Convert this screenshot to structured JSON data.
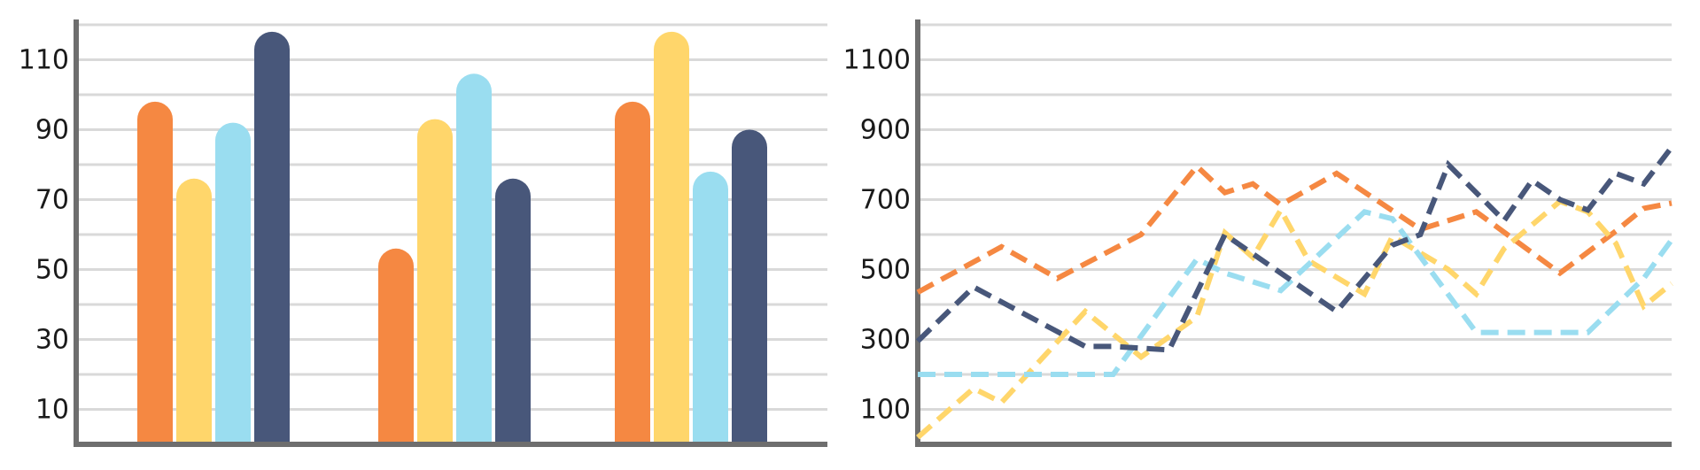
{
  "chart_data": [
    {
      "type": "bar",
      "categories": [
        "",
        "",
        ""
      ],
      "ylim": [
        0,
        120
      ],
      "yticks": [
        10,
        30,
        50,
        70,
        90,
        110
      ],
      "grid": true,
      "colors": [
        "#F58842",
        "#FFD66B",
        "#9ADDF0",
        "#48577A"
      ],
      "series": [
        {
          "color": "#F58842",
          "values": [
            98,
            56,
            98
          ]
        },
        {
          "color": "#FFD66B",
          "values": [
            76,
            93,
            118
          ]
        },
        {
          "color": "#9ADDF0",
          "values": [
            92,
            106,
            78
          ]
        },
        {
          "color": "#48577A",
          "values": [
            118,
            76,
            90
          ]
        }
      ]
    },
    {
      "type": "line",
      "ylim": [
        0,
        1200
      ],
      "xlim": [
        0,
        27
      ],
      "yticks": [
        100,
        300,
        500,
        700,
        900,
        1100
      ],
      "grid": true,
      "line_style": "dashed",
      "colors": [
        "#F58842",
        "#FFD66B",
        "#9ADDF0",
        "#48577A"
      ],
      "series": [
        {
          "color": "#F58842",
          "x": [
            0,
            3,
            5,
            8,
            10,
            11,
            12,
            13,
            15,
            18,
            20,
            23,
            25,
            26,
            27
          ],
          "y": [
            435,
            565,
            475,
            600,
            795,
            720,
            745,
            685,
            775,
            615,
            665,
            490,
            610,
            675,
            690
          ]
        },
        {
          "color": "#FFD66B",
          "x": [
            0,
            2,
            3,
            6,
            8,
            10,
            11,
            12,
            13,
            14,
            16,
            17,
            19,
            20,
            21,
            23,
            24,
            25,
            26,
            27
          ],
          "y": [
            20,
            160,
            120,
            380,
            250,
            365,
            605,
            535,
            670,
            525,
            430,
            595,
            500,
            430,
            560,
            695,
            665,
            575,
            395,
            460
          ]
        },
        {
          "color": "#9ADDF0",
          "x": [
            0,
            4,
            7,
            10,
            11,
            13,
            16,
            17,
            20,
            21,
            24,
            26,
            27
          ],
          "y": [
            200,
            200,
            200,
            530,
            490,
            440,
            665,
            645,
            320,
            320,
            320,
            475,
            585
          ]
        },
        {
          "color": "#48577A",
          "x": [
            0,
            2,
            6,
            7,
            9,
            11,
            13,
            15,
            17,
            18,
            19,
            21,
            22,
            23,
            24,
            25,
            26,
            27
          ],
          "y": [
            295,
            450,
            280,
            280,
            270,
            600,
            490,
            380,
            570,
            600,
            800,
            640,
            755,
            700,
            670,
            775,
            745,
            850
          ]
        }
      ]
    }
  ]
}
